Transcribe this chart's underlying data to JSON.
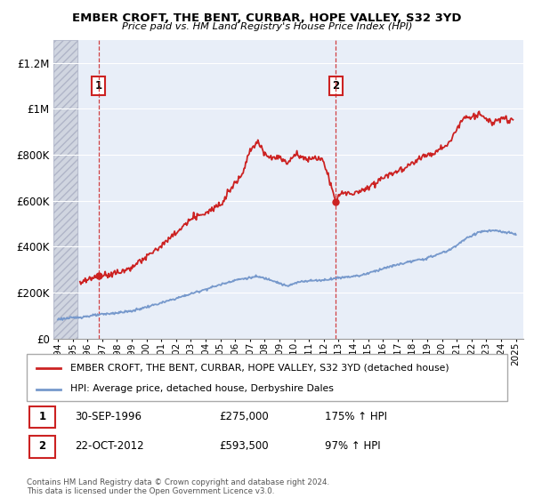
{
  "title": "EMBER CROFT, THE BENT, CURBAR, HOPE VALLEY, S32 3YD",
  "subtitle": "Price paid vs. HM Land Registry's House Price Index (HPI)",
  "ylabel_ticks": [
    "£0",
    "£200K",
    "£400K",
    "£600K",
    "£800K",
    "£1M",
    "£1.2M"
  ],
  "ytick_vals": [
    0,
    200000,
    400000,
    600000,
    800000,
    1000000,
    1200000
  ],
  "ylim": [
    0,
    1300000
  ],
  "xlim_start": 1993.7,
  "xlim_end": 2025.5,
  "xtick_every": [
    1994,
    1995,
    1996,
    1997,
    1998,
    1999,
    2000,
    2001,
    2002,
    2003,
    2004,
    2005,
    2006,
    2007,
    2008,
    2009,
    2010,
    2011,
    2012,
    2013,
    2014,
    2015,
    2016,
    2017,
    2018,
    2019,
    2020,
    2021,
    2022,
    2023,
    2024,
    2025
  ],
  "sale1_x": 1996.75,
  "sale1_y": 275000,
  "sale1_label": "1",
  "sale1_date": "30-SEP-1996",
  "sale1_price": "£275,000",
  "sale1_hpi": "175% ↑ HPI",
  "sale2_x": 2012.8,
  "sale2_y": 593500,
  "sale2_label": "2",
  "sale2_date": "22-OCT-2012",
  "sale2_price": "£593,500",
  "sale2_hpi": "97% ↑ HPI",
  "hpi_line_color": "#7799cc",
  "sale_line_color": "#cc2222",
  "vline_color": "#cc2222",
  "legend_sale_label": "EMBER CROFT, THE BENT, CURBAR, HOPE VALLEY, S32 3YD (detached house)",
  "legend_hpi_label": "HPI: Average price, detached house, Derbyshire Dales",
  "footer": "Contains HM Land Registry data © Crown copyright and database right 2024.\nThis data is licensed under the Open Government Licence v3.0.",
  "bg_plot_color": "#e8eef8",
  "hatch_color": "#c8ccd8",
  "fig_width": 6.0,
  "fig_height": 5.6,
  "dpi": 100
}
